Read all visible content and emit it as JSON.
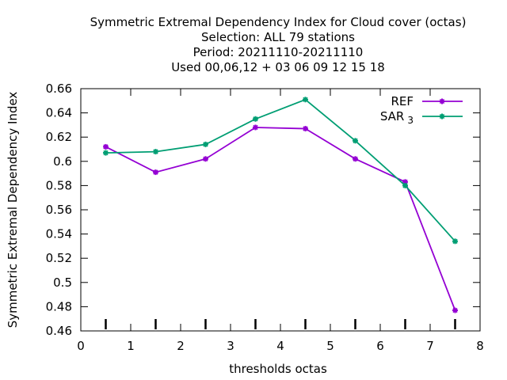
{
  "chart_data": {
    "type": "line",
    "title_lines": [
      "Symmetric Extremal Dependency Index  for Cloud cover (octas)",
      "Selection: ALL     79 stations",
      "Period: 20211110-20211110",
      "Used  00,06,12  + 03 06 09 12 15 18"
    ],
    "xlabel": "thresholds octas",
    "ylabel": "Symmetric Extremal Dependency Index",
    "xlim": [
      0,
      8
    ],
    "ylim": [
      0.46,
      0.66
    ],
    "xticks": [
      0,
      1,
      2,
      3,
      4,
      5,
      6,
      7,
      8
    ],
    "xtick_labels": [
      "0",
      "1",
      "2",
      "3",
      "4",
      "5",
      "6",
      "7",
      "8"
    ],
    "yticks": [
      0.46,
      0.48,
      0.5,
      0.52,
      0.54,
      0.56,
      0.58,
      0.6,
      0.62,
      0.64,
      0.66
    ],
    "ytick_labels": [
      "0.46",
      "0.48",
      "0.5",
      "0.52",
      "0.54",
      "0.56",
      "0.58",
      "0.6",
      "0.62",
      "0.64",
      "0.66"
    ],
    "grid": false,
    "legend_position": "top-right",
    "sample_markers_x": [
      0.5,
      1.5,
      2.5,
      3.5,
      4.5,
      5.5,
      6.5,
      7.5
    ],
    "series": [
      {
        "name": "REF",
        "legend_label": "REF",
        "legend_sub": "",
        "color": "#9400d3",
        "x": [
          0.5,
          1.5,
          2.5,
          3.5,
          4.5,
          5.5,
          6.5,
          7.5
        ],
        "y": [
          0.612,
          0.591,
          0.602,
          0.628,
          0.627,
          0.602,
          0.583,
          0.477
        ]
      },
      {
        "name": "SAR3",
        "legend_label": "SAR",
        "legend_sub": "3",
        "color": "#009e73",
        "x": [
          0.5,
          1.5,
          2.5,
          3.5,
          4.5,
          5.5,
          6.5,
          7.5
        ],
        "y": [
          0.607,
          0.608,
          0.614,
          0.635,
          0.651,
          0.617,
          0.58,
          0.534
        ]
      }
    ]
  }
}
